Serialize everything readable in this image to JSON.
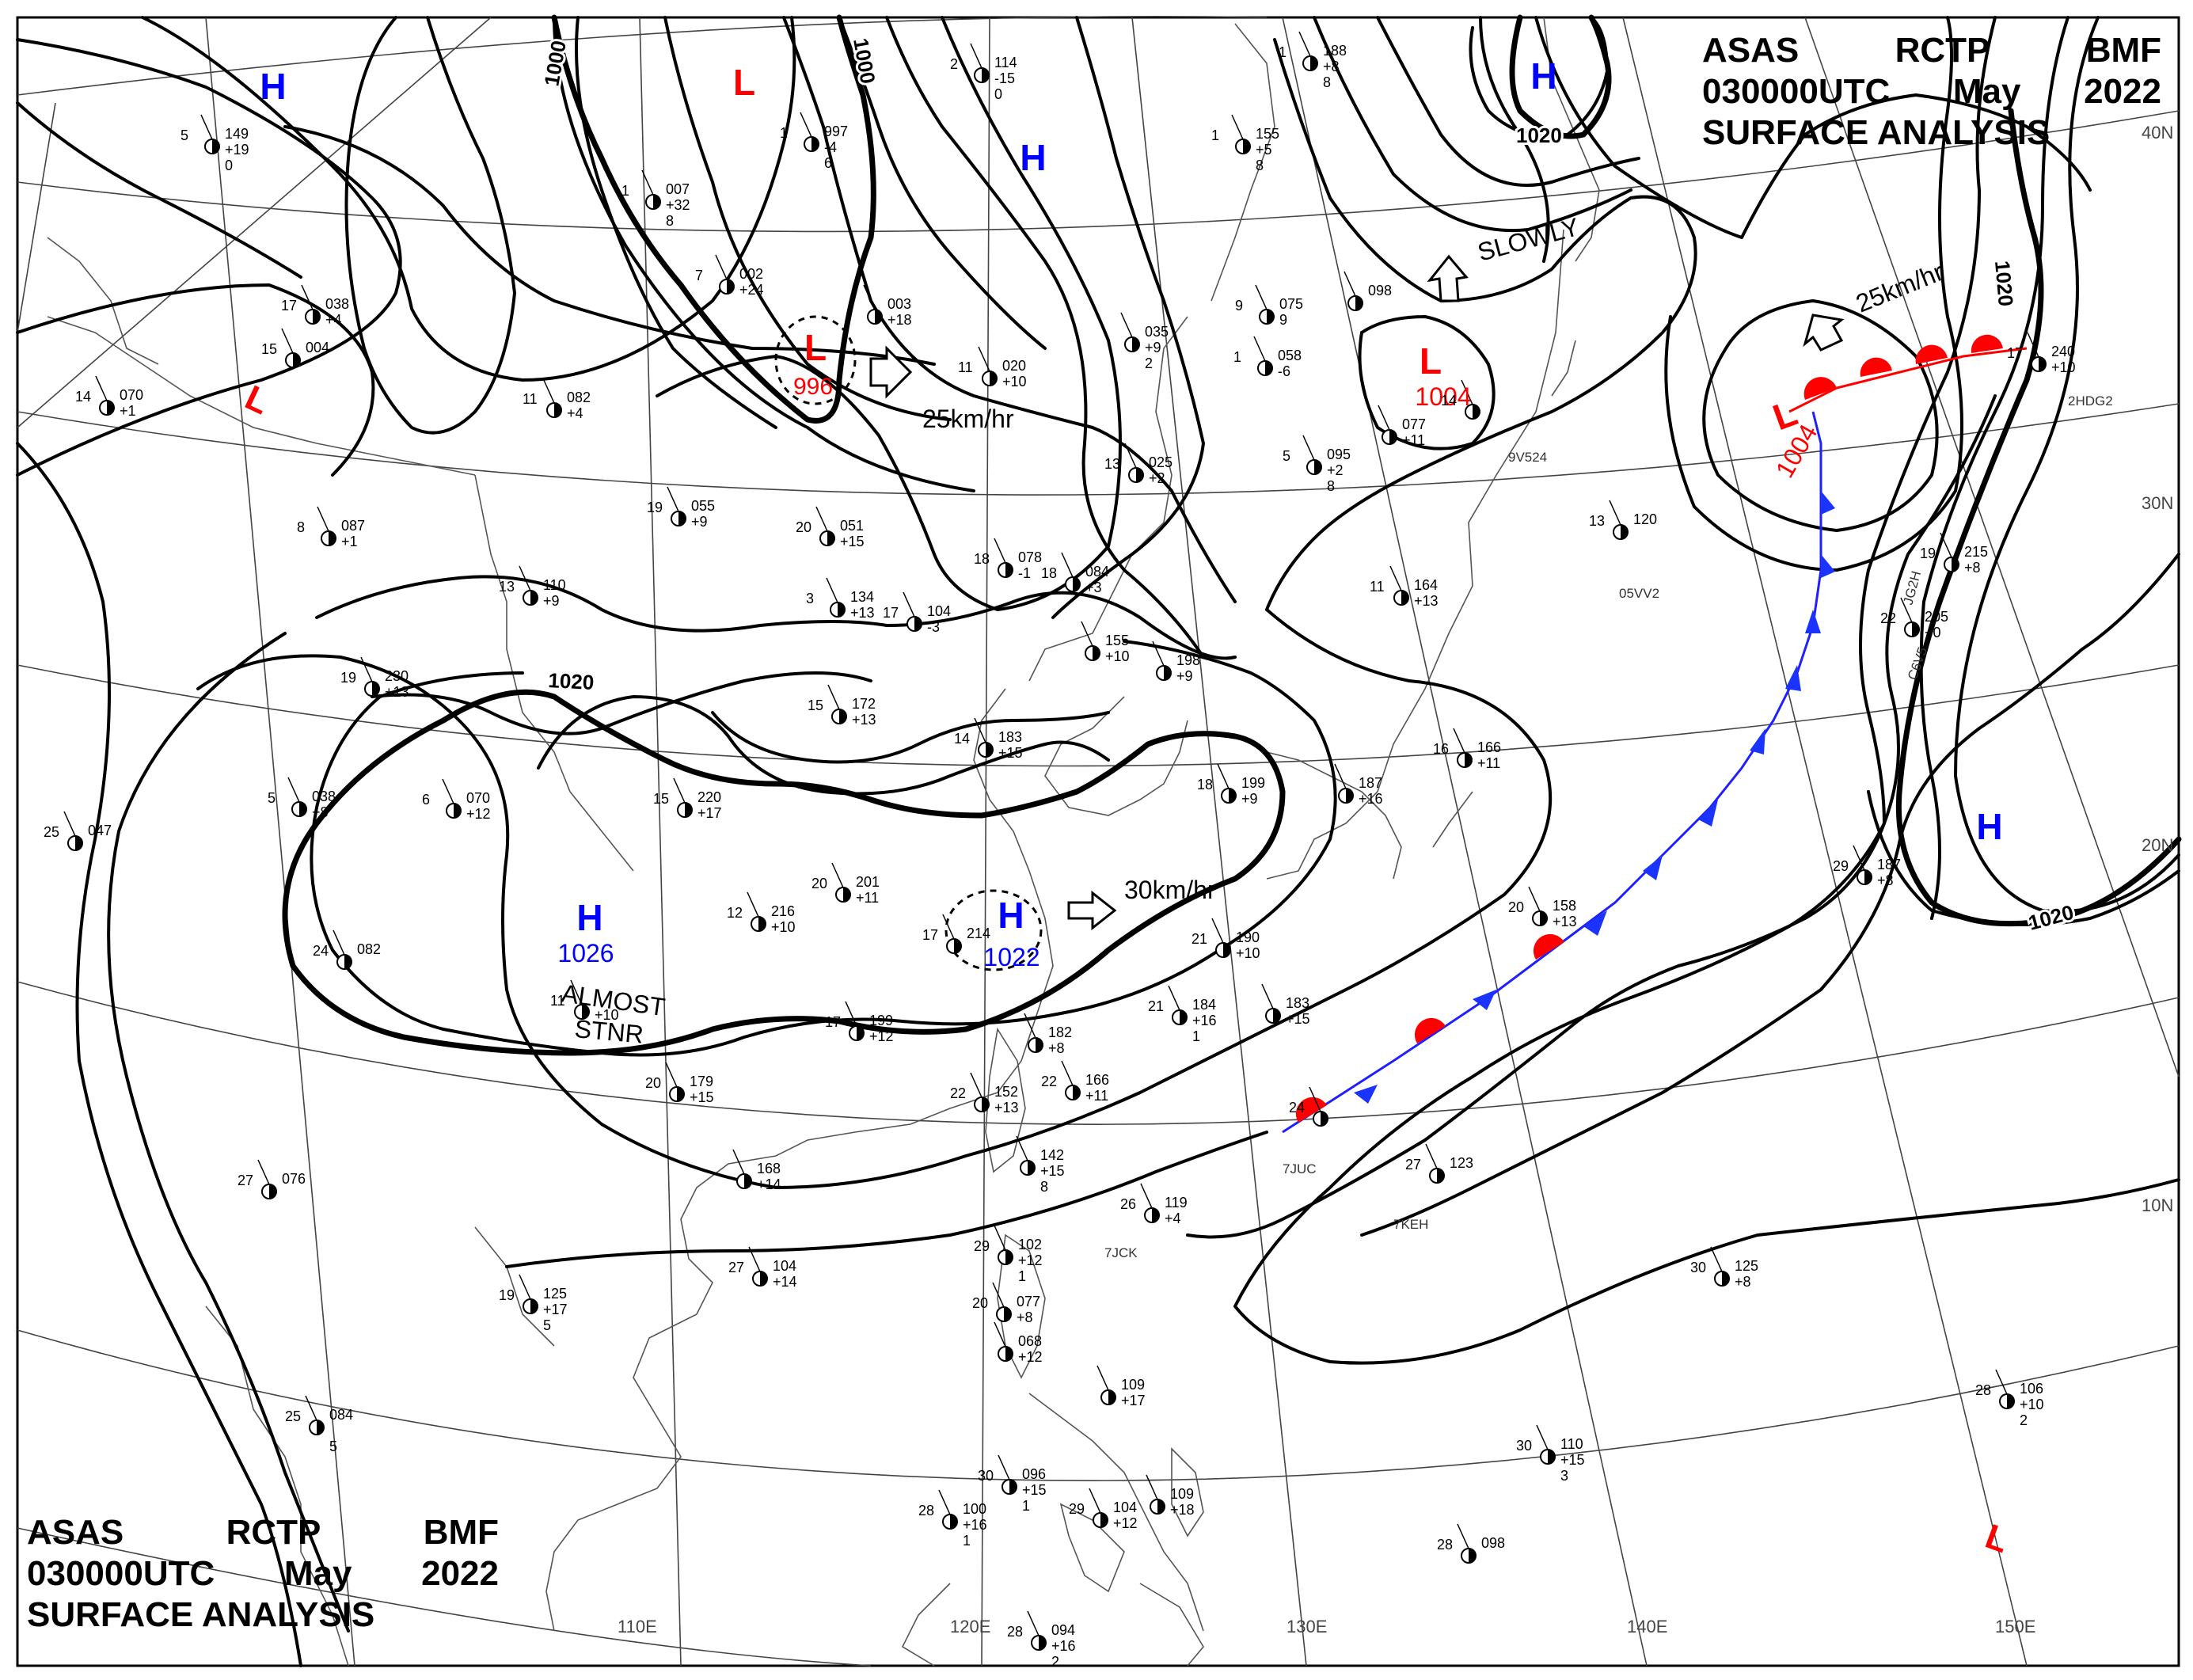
{
  "header": {
    "agency": "ASAS",
    "station": "RCTP",
    "office": "BMF",
    "valid_time": "030000UTC",
    "month": "May",
    "year": "2022",
    "product": "SURFACE ANALYSIS"
  },
  "graticule": {
    "lon_labels": [
      "110E",
      "120E",
      "130E",
      "140E",
      "150E"
    ],
    "lat_labels": [
      "40N",
      "30N",
      "20N",
      "10N"
    ]
  },
  "isobar_labels": [
    "1000",
    "1000",
    "1020",
    "1020",
    "1020",
    "1020"
  ],
  "pressure_centers": [
    {
      "type": "H",
      "value": "",
      "color": "#0000ff",
      "dashed": false
    },
    {
      "type": "L",
      "value": "",
      "color": "#ff0000",
      "dashed": false
    },
    {
      "type": "L",
      "value": "996",
      "color": "#ff0000",
      "dashed": true
    },
    {
      "type": "H",
      "value": "",
      "color": "#0000ff",
      "dashed": false
    },
    {
      "type": "H",
      "value": "",
      "color": "#0000ff",
      "dashed": false
    },
    {
      "type": "L",
      "value": "",
      "color": "#ff0000",
      "dashed": false
    },
    {
      "type": "L",
      "value": "1004",
      "color": "#ff0000",
      "dashed": false
    },
    {
      "type": "L",
      "value": "1004",
      "color": "#ff0000",
      "dashed": false
    },
    {
      "type": "H",
      "value": "1026",
      "color": "#0000ff",
      "dashed": false
    },
    {
      "type": "H",
      "value": "1022",
      "color": "#0000ff",
      "dashed": true
    },
    {
      "type": "H",
      "value": "",
      "color": "#0000ff",
      "dashed": false
    },
    {
      "type": "L",
      "value": "",
      "color": "#ff0000",
      "dashed": false
    }
  ],
  "movement_labels": [
    "25km/hr",
    "SLOWLY",
    "25km/hr",
    "30km/hr",
    "ALMOST",
    "STNR"
  ],
  "station_reports": [
    {
      "temp": "5",
      "pressure": "149",
      "tend": "+19",
      "extra": "0"
    },
    {
      "temp": "17",
      "pressure": "038",
      "tend": "+4",
      "extra": ""
    },
    {
      "temp": "15",
      "pressure": "004",
      "tend": "",
      "extra": ""
    },
    {
      "temp": "14",
      "pressure": "070",
      "tend": "+1",
      "extra": ""
    },
    {
      "temp": "11",
      "pressure": "082",
      "tend": "+4",
      "extra": ""
    },
    {
      "temp": "8",
      "pressure": "087",
      "tend": "+1",
      "extra": ""
    },
    {
      "temp": "13",
      "pressure": "110",
      "tend": "+9",
      "extra": ""
    },
    {
      "temp": "19",
      "pressure": "230",
      "tend": "+13",
      "extra": ""
    },
    {
      "temp": "5",
      "pressure": "038",
      "tend": "+8",
      "extra": ""
    },
    {
      "temp": "6",
      "pressure": "070",
      "tend": "+12",
      "extra": ""
    },
    {
      "temp": "24",
      "pressure": "082",
      "tend": "",
      "extra": ""
    },
    {
      "temp": "25",
      "pressure": "047",
      "tend": "",
      "extra": ""
    },
    {
      "temp": "27",
      "pressure": "076",
      "tend": "",
      "extra": ""
    },
    {
      "temp": "19",
      "pressure": "125",
      "tend": "+17",
      "extra": "5"
    },
    {
      "temp": "25",
      "pressure": "084",
      "tend": "",
      "extra": "5"
    },
    {
      "temp": "1",
      "pressure": "007",
      "tend": "+32",
      "extra": "8"
    },
    {
      "temp": "7",
      "pressure": "002",
      "tend": "+24",
      "extra": ""
    },
    {
      "temp": "1",
      "pressure": "997",
      "tend": "-4",
      "extra": "6"
    },
    {
      "temp": "2",
      "pressure": "114",
      "tend": "-15",
      "extra": "0"
    },
    {
      "temp": "",
      "pressure": "003",
      "tend": "+18",
      "extra": ""
    },
    {
      "temp": "19",
      "pressure": "055",
      "tend": "+9",
      "extra": ""
    },
    {
      "temp": "20",
      "pressure": "051",
      "tend": "+15",
      "extra": ""
    },
    {
      "temp": "11",
      "pressure": "020",
      "tend": "+10",
      "extra": ""
    },
    {
      "temp": "13",
      "pressure": "025",
      "tend": "+2",
      "extra": ""
    },
    {
      "temp": "",
      "pressure": "035",
      "tend": "+9",
      "extra": "2"
    },
    {
      "temp": "18",
      "pressure": "078",
      "tend": "-1",
      "extra": ""
    },
    {
      "temp": "18",
      "pressure": "084",
      "tend": "+3",
      "extra": ""
    },
    {
      "temp": "3",
      "pressure": "134",
      "tend": "+13",
      "extra": ""
    },
    {
      "temp": "17",
      "pressure": "104",
      "tend": "-3",
      "extra": ""
    },
    {
      "temp": "15",
      "pressure": "172",
      "tend": "+13",
      "extra": ""
    },
    {
      "temp": "14",
      "pressure": "183",
      "tend": "+15",
      "extra": ""
    },
    {
      "temp": "15",
      "pressure": "220",
      "tend": "+17",
      "extra": ""
    },
    {
      "temp": "20",
      "pressure": "201",
      "tend": "+11",
      "extra": ""
    },
    {
      "temp": "12",
      "pressure": "216",
      "tend": "+10",
      "extra": ""
    },
    {
      "temp": "17",
      "pressure": "214",
      "tend": "",
      "extra": ""
    },
    {
      "temp": "17",
      "pressure": "199",
      "tend": "+12",
      "extra": ""
    },
    {
      "temp": "11",
      "pressure": "",
      "tend": "+10",
      "extra": ""
    },
    {
      "temp": "20",
      "pressure": "179",
      "tend": "+15",
      "extra": ""
    },
    {
      "temp": "",
      "pressure": "168",
      "tend": "+14",
      "extra": ""
    },
    {
      "temp": "27",
      "pressure": "104",
      "tend": "+14",
      "extra": ""
    },
    {
      "temp": "9",
      "pressure": "075",
      "tend": "9",
      "extra": ""
    },
    {
      "temp": "1",
      "pressure": "058",
      "tend": "-6",
      "extra": ""
    },
    {
      "temp": "5",
      "pressure": "095",
      "tend": "+2",
      "extra": "8"
    },
    {
      "temp": "1",
      "pressure": "155",
      "tend": "+5",
      "extra": "8"
    },
    {
      "temp": "1",
      "pressure": "188",
      "tend": "+8",
      "extra": "8"
    },
    {
      "temp": "",
      "pressure": "098",
      "tend": "",
      "extra": ""
    },
    {
      "temp": "",
      "pressure": "077",
      "tend": "+11",
      "extra": ""
    },
    {
      "temp": "14",
      "pressure": "",
      "tend": "",
      "extra": ""
    },
    {
      "temp": "11",
      "pressure": "164",
      "tend": "+13",
      "extra": ""
    },
    {
      "temp": "",
      "pressure": "155",
      "tend": "+10",
      "extra": ""
    },
    {
      "temp": "",
      "pressure": "198",
      "tend": "+9",
      "extra": ""
    },
    {
      "temp": "18",
      "pressure": "199",
      "tend": "+9",
      "extra": ""
    },
    {
      "temp": "",
      "pressure": "187",
      "tend": "+16",
      "extra": ""
    },
    {
      "temp": "16",
      "pressure": "166",
      "tend": "+11",
      "extra": ""
    },
    {
      "temp": "21",
      "pressure": "190",
      "tend": "+10",
      "extra": ""
    },
    {
      "temp": "21",
      "pressure": "184",
      "tend": "+16",
      "extra": "1"
    },
    {
      "temp": "",
      "pressure": "183",
      "tend": "+15",
      "extra": ""
    },
    {
      "temp": "",
      "pressure": "182",
      "tend": "+8",
      "extra": ""
    },
    {
      "temp": "22",
      "pressure": "166",
      "tend": "+11",
      "extra": ""
    },
    {
      "temp": "22",
      "pressure": "152",
      "tend": "+13",
      "extra": ""
    },
    {
      "temp": "",
      "pressure": "142",
      "tend": "+15",
      "extra": "8"
    },
    {
      "temp": "26",
      "pressure": "119",
      "tend": "+4",
      "extra": ""
    },
    {
      "temp": "29",
      "pressure": "102",
      "tend": "+12",
      "extra": "1"
    },
    {
      "temp": "20",
      "pressure": "077",
      "tend": "+8",
      "extra": ""
    },
    {
      "temp": "",
      "pressure": "068",
      "tend": "+12",
      "extra": ""
    },
    {
      "temp": "",
      "pressure": "109",
      "tend": "+17",
      "extra": ""
    },
    {
      "temp": "30",
      "pressure": "096",
      "tend": "+15",
      "extra": "1"
    },
    {
      "temp": "28",
      "pressure": "100",
      "tend": "+16",
      "extra": "1"
    },
    {
      "temp": "29",
      "pressure": "104",
      "tend": "+12",
      "extra": ""
    },
    {
      "temp": "",
      "pressure": "109",
      "tend": "+18",
      "extra": ""
    },
    {
      "temp": "28",
      "pressure": "094",
      "tend": "+16",
      "extra": "2"
    },
    {
      "temp": "13",
      "pressure": "120",
      "tend": "",
      "extra": ""
    },
    {
      "temp": "20",
      "pressure": "158",
      "tend": "+13",
      "extra": ""
    },
    {
      "temp": "24",
      "pressure": "",
      "tend": "",
      "extra": ""
    },
    {
      "temp": "27",
      "pressure": "123",
      "tend": "",
      "extra": ""
    },
    {
      "temp": "30",
      "pressure": "125",
      "tend": "+8",
      "extra": ""
    },
    {
      "temp": "30",
      "pressure": "110",
      "tend": "+15",
      "extra": "3"
    },
    {
      "temp": "28",
      "pressure": "098",
      "tend": "",
      "extra": ""
    },
    {
      "temp": "22",
      "pressure": "205",
      "tend": "+0",
      "extra": ""
    },
    {
      "temp": "19",
      "pressure": "215",
      "tend": "+8",
      "extra": ""
    },
    {
      "temp": "17",
      "pressure": "240",
      "tend": "+10",
      "extra": ""
    },
    {
      "temp": "29",
      "pressure": "187",
      "tend": "+8",
      "extra": ""
    },
    {
      "temp": "28",
      "pressure": "106",
      "tend": "+10",
      "extra": "2"
    }
  ],
  "ship_ids": [
    "9V524",
    "05VV2",
    "7JUC",
    "7KEH",
    "7JCK",
    "2HDG2",
    "JG2H",
    "C6V5"
  ]
}
